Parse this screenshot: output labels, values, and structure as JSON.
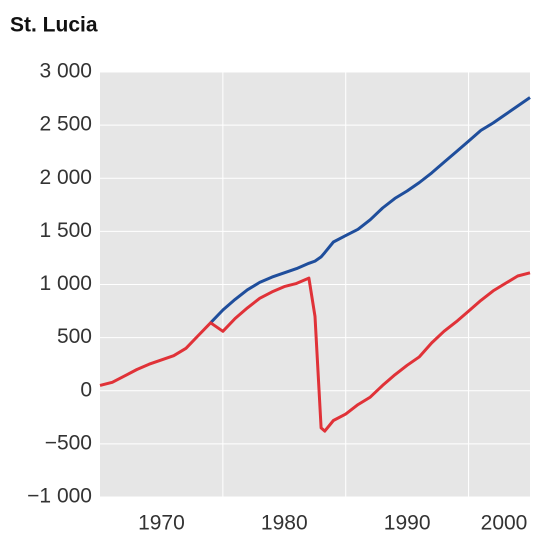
{
  "chart_data": {
    "type": "line",
    "title": "St. Lucia",
    "x": [
      1965,
      1966,
      1967,
      1968,
      1969,
      1970,
      1971,
      1972,
      1973,
      1974,
      1975,
      1976,
      1977,
      1978,
      1979,
      1980,
      1981,
      1982,
      1982.5,
      1983,
      1983.3,
      1984,
      1985,
      1986,
      1987,
      1988,
      1989,
      1990,
      1991,
      1992,
      1993,
      1994,
      1995,
      1996,
      1997,
      1998,
      1999,
      2000
    ],
    "series": [
      {
        "color": "#1f4e9c",
        "values": [
          null,
          null,
          null,
          null,
          null,
          null,
          null,
          null,
          null,
          640,
          760,
          860,
          950,
          1020,
          1070,
          1110,
          1150,
          1200,
          1220,
          1260,
          1300,
          1400,
          1460,
          1520,
          1610,
          1720,
          1810,
          1880,
          1960,
          2050,
          2150,
          2250,
          2350,
          2450,
          2520,
          2600,
          2680,
          2760
        ]
      },
      {
        "color": "#e03238",
        "values": [
          50,
          80,
          140,
          200,
          250,
          290,
          330,
          400,
          520,
          640,
          560,
          680,
          780,
          870,
          930,
          980,
          1010,
          1060,
          700,
          -350,
          -380,
          -280,
          -220,
          -130,
          -60,
          50,
          150,
          240,
          320,
          450,
          560,
          650,
          750,
          850,
          940,
          1010,
          1080,
          1110
        ]
      }
    ],
    "xlim": [
      1965,
      2000
    ],
    "xticks": [
      1970,
      1980,
      1990,
      2000
    ],
    "xgrid": [
      1975,
      1985,
      1995
    ],
    "ylim": [
      -1000,
      3000
    ],
    "yticks": [
      {
        "value": -1000,
        "label": "−1 000"
      },
      {
        "value": -500,
        "label": "−500"
      },
      0,
      500,
      {
        "value": 1000,
        "label": "1 000"
      },
      {
        "value": 1500,
        "label": "1 500"
      },
      {
        "value": 2000,
        "label": "2 000"
      },
      {
        "value": 2500,
        "label": "2 500"
      },
      {
        "value": 3000,
        "label": "3 000"
      }
    ],
    "grid": true
  }
}
